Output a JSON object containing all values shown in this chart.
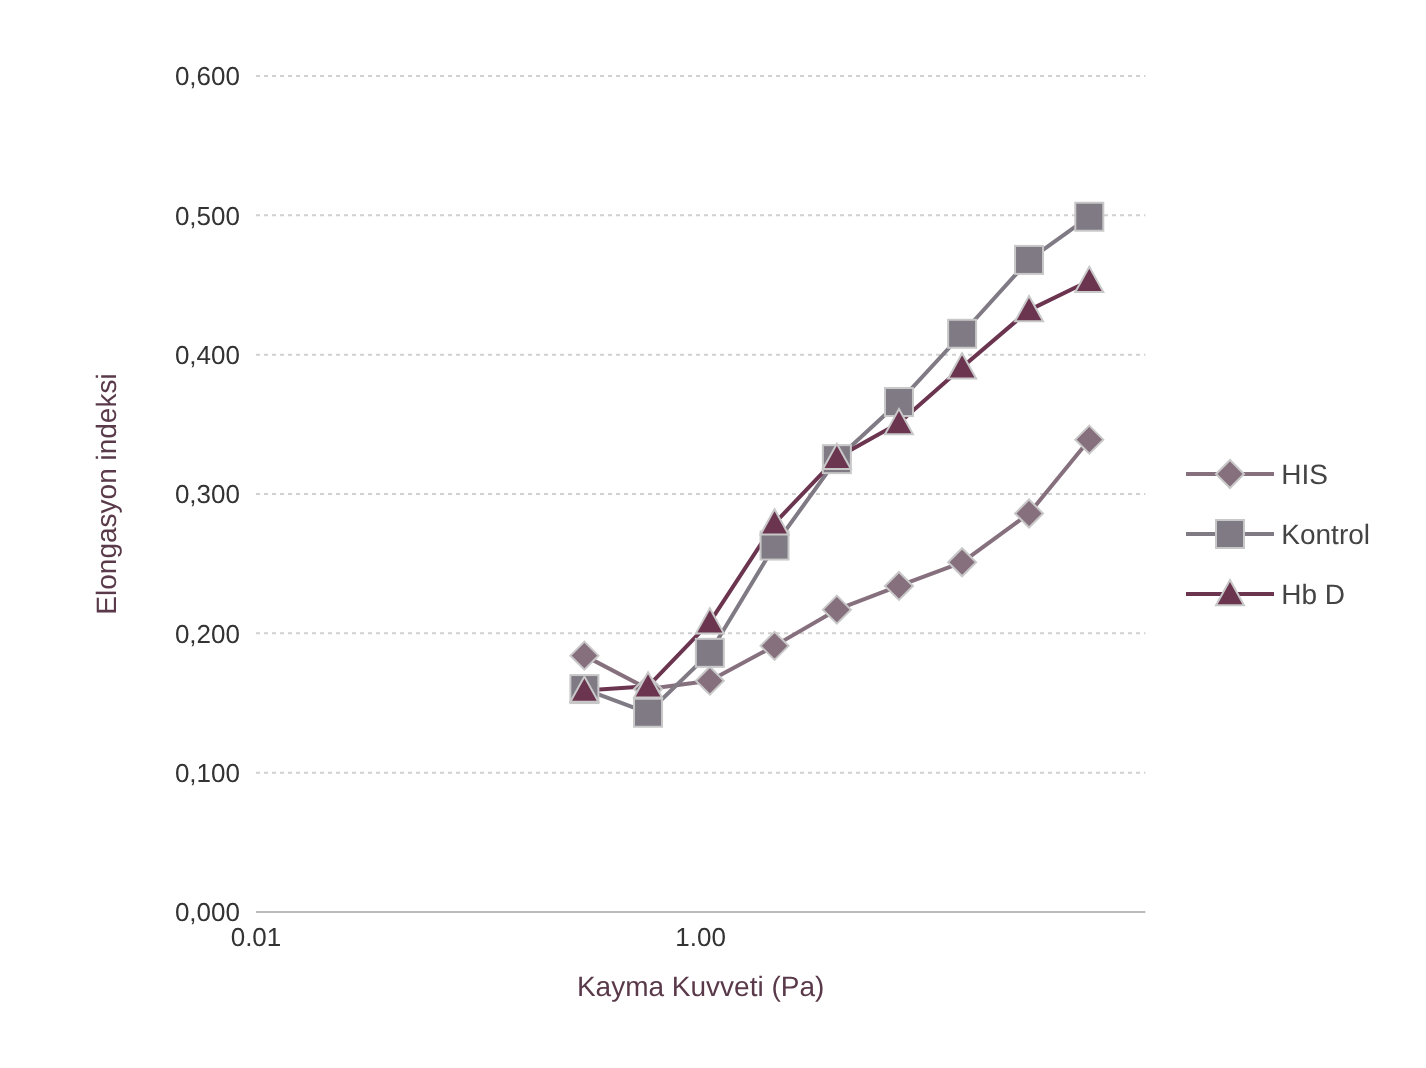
{
  "chart_data": {
    "type": "line",
    "xlabel": "Kayma Kuvveti (Pa)",
    "ylabel": "Elongasyon indeksi",
    "log": "x",
    "xlim": [
      0.01,
      100
    ],
    "xticks": [
      {
        "value": 0.01,
        "label": "0.01"
      },
      {
        "value": 1,
        "label": "1.00"
      }
    ],
    "ylim": [
      0,
      0.6
    ],
    "yticks": [
      {
        "value": 0,
        "label": "0,000"
      },
      {
        "value": 0.1,
        "label": "0,100"
      },
      {
        "value": 0.2,
        "label": "0,200"
      },
      {
        "value": 0.3,
        "label": "0,300"
      },
      {
        "value": 0.4,
        "label": "0,400"
      },
      {
        "value": 0.5,
        "label": "0,500"
      },
      {
        "value": 0.6,
        "label": "0,600"
      }
    ],
    "grid": "y",
    "legend": "right",
    "line_style": "solid",
    "x": [
      0.3,
      0.58,
      1.1,
      2.15,
      4.1,
      7.8,
      15,
      30,
      56
    ],
    "series": [
      {
        "name": "HIS",
        "color": "#86707e",
        "marker": "diamond",
        "values": [
          0.184,
          0.16,
          0.166,
          0.191,
          0.217,
          0.234,
          0.251,
          0.286,
          0.339
        ]
      },
      {
        "name": "Kontrol",
        "color": "#807a85",
        "marker": "square",
        "values": [
          0.16,
          0.143,
          0.186,
          0.263,
          0.325,
          0.366,
          0.415,
          0.468,
          0.499
        ]
      },
      {
        "name": "Hb D",
        "color": "#6b3550",
        "marker": "triangle",
        "values": [
          0.159,
          0.162,
          0.208,
          0.279,
          0.326,
          0.351,
          0.391,
          0.432,
          0.453
        ]
      }
    ]
  }
}
